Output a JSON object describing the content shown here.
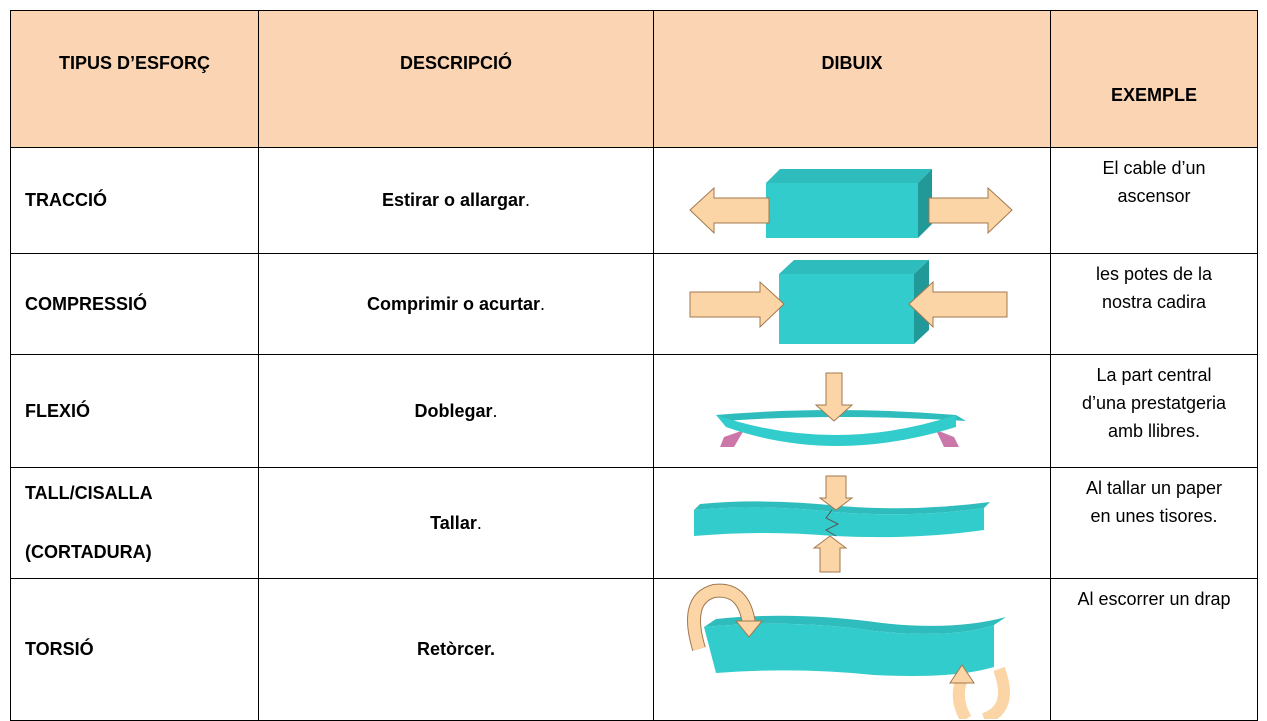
{
  "table": {
    "header": [
      "TIPUS D’ESFORÇ",
      "DESCRIPCIÓ",
      "DIBUIX",
      "EXEMPLE"
    ],
    "rows": [
      {
        "type": [
          "TRACCIÓ"
        ],
        "description": "Estirar o allargar",
        "punct": ".",
        "example": [
          "El cable d’un",
          "ascensor"
        ]
      },
      {
        "type": [
          "COMPRESSIÓ"
        ],
        "description": "Comprimir o acurtar",
        "punct": ".",
        "example": [
          "les potes de la",
          "nostra cadira"
        ]
      },
      {
        "type": [
          "FLEXIÓ"
        ],
        "description": "Doblegar",
        "punct": ".",
        "example": [
          "La part central",
          "d’una prestatgeria",
          "amb llibres."
        ]
      },
      {
        "type": [
          "TALL/CISALLA",
          "(CORTADURA)"
        ],
        "description": "Tallar",
        "punct": ".",
        "example": [
          "Al tallar un paper",
          "en unes tisores."
        ]
      },
      {
        "type": [
          "TORSIÓ"
        ],
        "description": "Retòrcer.",
        "punct": null,
        "example": [
          "Al escorrer un drap"
        ]
      }
    ]
  }
}
